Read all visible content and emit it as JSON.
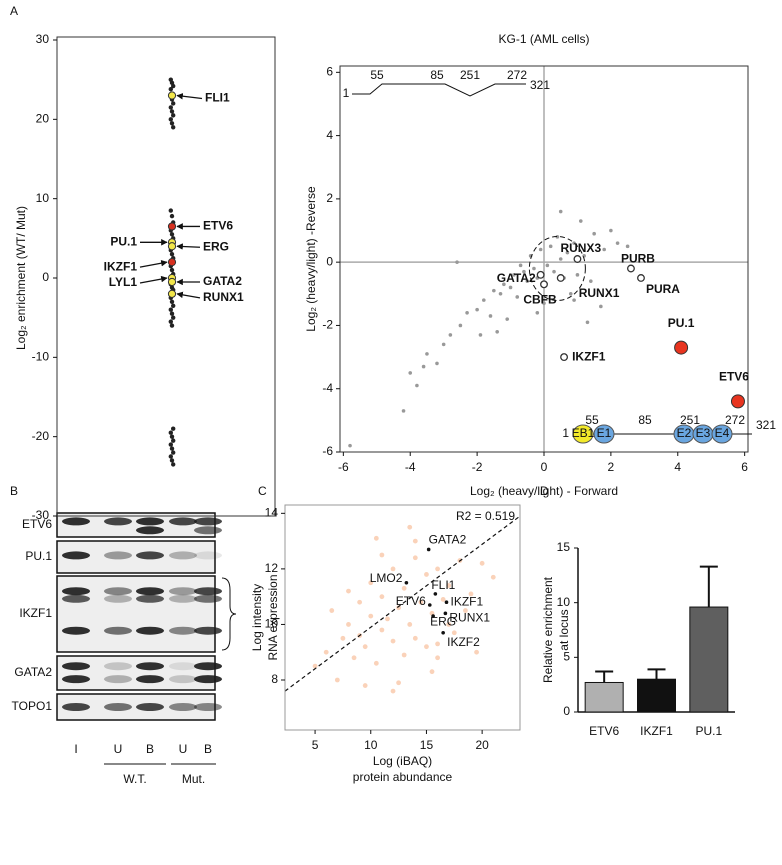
{
  "panel_labels": [
    "A",
    "B",
    "C",
    "D"
  ],
  "blot": {
    "rows": [
      "ETV6",
      "PU.1",
      "IKZF1",
      "GATA2",
      "TOPO1"
    ],
    "lanes": [
      "I",
      "U",
      "B",
      "U",
      "B"
    ],
    "groups": [
      "W.T.",
      "Mut."
    ]
  },
  "chart_data": [
    {
      "type": "strip",
      "ylabel": "Log₂ enrichment (WT/ Mut)",
      "ylim": [
        -30,
        30
      ],
      "yticks": [
        -30,
        -20,
        -10,
        0,
        10,
        20,
        30
      ],
      "color": "#222222",
      "values": [
        25,
        24.6,
        24.2,
        23.8,
        22.5,
        22,
        21.5,
        21,
        20.5,
        20,
        19.5,
        19,
        8.5,
        7.8,
        7,
        6,
        5.5,
        5,
        3.5,
        3,
        2.5,
        1.5,
        1,
        0.5,
        -0.8,
        -1.2,
        -1.5,
        -2.5,
        -3,
        -3.5,
        -4,
        -4.5,
        -5,
        -5.5,
        -6,
        -19,
        -19.5,
        -20,
        -20.5,
        -21,
        -21.5,
        -22,
        -22.5,
        -23,
        -23.5
      ],
      "highlighted": [
        {
          "name": "FLI1",
          "value": 23,
          "color": "#f2e64a",
          "label_color": "#111111"
        },
        {
          "name": "ETV6",
          "value": 6.5,
          "color": "#d7301f",
          "label_color": "#e8251f"
        },
        {
          "name": "PU.1",
          "value": 4.5,
          "color": "#f2e64a",
          "label_color": "#e8251f"
        },
        {
          "name": "ERG",
          "value": 4,
          "color": "#f2e64a",
          "label_color": "#111111"
        },
        {
          "name": "IKZF1",
          "value": 2,
          "color": "#d7301f",
          "label_color": "#e8251f"
        },
        {
          "name": "LYL1",
          "value": 0,
          "color": "#f2e64a",
          "label_color": "#111111"
        },
        {
          "name": "GATA2",
          "value": -0.5,
          "color": "#f2e64a",
          "label_color": "#111111"
        },
        {
          "name": "RUNX1",
          "value": -2,
          "color": "#f2e64a",
          "label_color": "#111111"
        }
      ]
    },
    {
      "type": "scatter",
      "title": "KG-1 (AML cells)",
      "xlabel": "Log₂ (heavy/light) - Forward",
      "ylabel": "Log₂ (heavy/light) -Reverse",
      "xlim": [
        -6.1,
        6.1
      ],
      "ylim": [
        -6,
        6.2
      ],
      "xticks": [
        -6,
        -4,
        -2,
        0,
        2,
        4,
        6
      ],
      "yticks": [
        -6,
        -4,
        -2,
        0,
        2,
        4,
        6
      ],
      "zero_lines": true,
      "color": "#999999",
      "x": [
        -5.8,
        -4.2,
        -4.0,
        -3.8,
        -3.5,
        -3.2,
        -3.0,
        -2.8,
        -2.5,
        -2.3,
        -2.0,
        -1.8,
        -1.6,
        -1.5,
        -1.3,
        -1.2,
        -1.0,
        -0.9,
        -0.8,
        -0.6,
        -0.5,
        -0.4,
        -0.3,
        -0.2,
        -0.1,
        0.1,
        0.2,
        0.3,
        0.4,
        0.5,
        0.6,
        0.7,
        0.8,
        0.9,
        1.0,
        1.1,
        1.2,
        1.4,
        1.5,
        1.7,
        1.8,
        2.0,
        2.2,
        2.5,
        -2.6,
        -1.9,
        -1.1,
        -0.7,
        0.0,
        0.5,
        1.3,
        -3.6,
        -1.4,
        -0.2,
        0.9
      ],
      "y": [
        -5.8,
        -4.7,
        -3.5,
        -3.9,
        -2.9,
        -3.2,
        -2.6,
        -2.3,
        -2.0,
        -1.6,
        -1.5,
        -1.2,
        -1.7,
        -0.9,
        -1.0,
        -0.7,
        -0.8,
        -0.4,
        -1.1,
        -0.3,
        -0.6,
        0.2,
        -0.2,
        -0.5,
        0.4,
        -0.1,
        0.5,
        -0.3,
        0.8,
        0.1,
        -0.5,
        0.3,
        -1.0,
        0.6,
        -0.4,
        1.3,
        0.2,
        -0.6,
        0.9,
        -1.4,
        0.4,
        1.0,
        0.6,
        0.5,
        0.0,
        -2.3,
        -1.8,
        -0.1,
        -1.3,
        1.6,
        -1.9,
        -3.3,
        -2.2,
        -1.6,
        -1.2
      ],
      "highlighted": [
        {
          "name": "RUNX3",
          "x": 1.0,
          "y": 0.1,
          "marker": "open"
        },
        {
          "name": "PURB",
          "x": 2.6,
          "y": -0.2,
          "marker": "open"
        },
        {
          "name": "PURA",
          "x": 2.9,
          "y": -0.5,
          "marker": "open"
        },
        {
          "name": "GATA2",
          "x": -0.1,
          "y": -0.4,
          "marker": "open"
        },
        {
          "name": "CBFB",
          "x": 0,
          "y": -0.7,
          "marker": "open"
        },
        {
          "name": "RUNX1",
          "x": 0.5,
          "y": -0.5,
          "marker": "open"
        },
        {
          "name": "IKZF1",
          "x": 0.6,
          "y": -3.0,
          "marker": "open"
        },
        {
          "name": "PU.1",
          "x": 4.1,
          "y": -2.7,
          "marker": "filled",
          "color": "#e8341f"
        },
        {
          "name": "ETV6",
          "x": 5.8,
          "y": -4.4,
          "marker": "filled",
          "color": "#e8341f"
        }
      ],
      "domain_top": {
        "positions": [
          1,
          55,
          85,
          251,
          272,
          321
        ]
      },
      "domain_bottom": {
        "positions": [
          1,
          55,
          85,
          251,
          272,
          321
        ],
        "domains": [
          "EB1",
          "E1",
          "E2",
          "E3",
          "E4"
        ]
      }
    },
    {
      "type": "scatter",
      "xlabel": [
        "Log (iBAQ)",
        "protein abundance"
      ],
      "ylabel": [
        "Log intensity",
        "RNA expression"
      ],
      "xlim": [
        2.3,
        23.4
      ],
      "ylim": [
        6.2,
        14.3
      ],
      "xticks": [
        5,
        10,
        15,
        20
      ],
      "yticks": [
        8,
        10,
        12,
        14
      ],
      "color": "#f6b48a",
      "annotation": "R2 = 0.519",
      "trendline": {
        "x": [
          2.3,
          23.4
        ],
        "y": [
          7.6,
          13.9
        ]
      },
      "x": [
        5,
        6,
        7,
        7.5,
        8,
        8.5,
        9,
        9,
        9.5,
        10,
        10,
        10.5,
        11,
        11,
        11.5,
        12,
        12,
        12.5,
        13,
        13,
        13.5,
        14,
        14,
        14.5,
        15,
        15,
        15.5,
        16,
        16,
        16.5,
        17,
        17.5,
        18,
        18.5,
        19,
        20,
        21,
        8,
        9.5,
        11,
        12.5,
        14,
        15.5,
        17,
        10.5,
        12,
        13.5,
        16,
        6.5,
        19.5
      ],
      "y": [
        8.5,
        9,
        8,
        9.5,
        10,
        8.8,
        9.6,
        10.8,
        9.2,
        10.3,
        11.5,
        8.6,
        9.8,
        11,
        10.2,
        12,
        9.4,
        10.6,
        11.3,
        8.9,
        10,
        12.4,
        9.5,
        10.8,
        11.8,
        9.2,
        10.4,
        12,
        8.8,
        10.9,
        11.4,
        9.7,
        12.3,
        10.5,
        11.1,
        12.2,
        11.7,
        11.2,
        7.8,
        12.5,
        7.9,
        13,
        8.3,
        10,
        13.1,
        7.6,
        13.5,
        9.3,
        10.5,
        9
      ],
      "highlighted": [
        {
          "name": "GATA2",
          "x": 15.2,
          "y": 12.7,
          "marker": "dot"
        },
        {
          "name": "LMO2",
          "x": 13.2,
          "y": 11.5,
          "marker": "dot"
        },
        {
          "name": "FLI1",
          "x": 15.8,
          "y": 11.1,
          "marker": "dot"
        },
        {
          "name": "ETV6",
          "x": 15.3,
          "y": 10.7,
          "marker": "dot"
        },
        {
          "name": "ERG",
          "x": 15.6,
          "y": 10.3,
          "marker": "dot"
        },
        {
          "name": "IKZF1",
          "x": 16.8,
          "y": 10.8,
          "marker": "dot"
        },
        {
          "name": "RUNX1",
          "x": 16.7,
          "y": 10.4,
          "marker": "dot"
        },
        {
          "name": "IKZF2",
          "x": 16.5,
          "y": 9.7,
          "marker": "dot"
        }
      ]
    },
    {
      "type": "bar",
      "ylabel": [
        "Relative enrichment",
        "at locus"
      ],
      "categories": [
        "ETV6",
        "IKZF1",
        "PU.1"
      ],
      "values": [
        2.7,
        3.0,
        9.6
      ],
      "errors": [
        1.0,
        0.9,
        3.7
      ],
      "colors": [
        "#b0b0b0",
        "#111111",
        "#5f5f5f"
      ],
      "ylim": [
        0,
        15
      ],
      "yticks": [
        0,
        5,
        10,
        15
      ]
    }
  ]
}
